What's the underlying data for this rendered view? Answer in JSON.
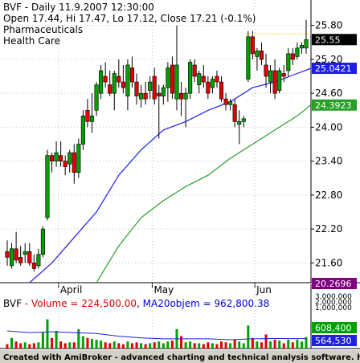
{
  "header": {
    "symbol": "BVF",
    "period": "Daily",
    "datetime": "11.9.2007 12:30:00",
    "ohlc": "Open 17.44, Hi 17.47, Lo 17.12, Close 17.21 (-0.1%)",
    "sector": "Pharmaceuticals",
    "industry": "Health Care"
  },
  "colors": {
    "up": "#00a000",
    "down": "#e00000",
    "ma_short": "#1e1ee6",
    "ma_long": "#28a028",
    "vol_avg": "#2020e0",
    "dotted": "#ffd200"
  },
  "chart_data": [
    {
      "type": "candlestick",
      "title": "BVF - Daily 11.9.2007 12:30:00",
      "x_ticks": [
        "April",
        "May",
        "Jun"
      ],
      "y_ticks": [
        21.6,
        22.2,
        22.8,
        23.4,
        24.0,
        24.6,
        25.2,
        25.8
      ],
      "ylim": [
        21.25,
        26.25
      ],
      "grid": true,
      "candles": [
        {
          "o": 21.8,
          "h": 22.0,
          "l": 21.55,
          "c": 21.7
        },
        {
          "o": 21.55,
          "h": 21.95,
          "l": 21.5,
          "c": 21.85
        },
        {
          "o": 21.85,
          "h": 22.15,
          "l": 21.6,
          "c": 21.65
        },
        {
          "o": 21.7,
          "h": 21.9,
          "l": 21.55,
          "c": 21.6
        },
        {
          "o": 21.75,
          "h": 21.95,
          "l": 21.6,
          "c": 21.8
        },
        {
          "o": 21.8,
          "h": 21.95,
          "l": 21.55,
          "c": 21.6
        },
        {
          "o": 21.6,
          "h": 21.75,
          "l": 21.45,
          "c": 21.5
        },
        {
          "o": 21.55,
          "h": 21.85,
          "l": 21.5,
          "c": 21.75
        },
        {
          "o": 21.75,
          "h": 22.25,
          "l": 21.7,
          "c": 22.2
        },
        {
          "o": 22.4,
          "h": 23.6,
          "l": 22.35,
          "c": 23.5
        },
        {
          "o": 23.5,
          "h": 23.55,
          "l": 23.2,
          "c": 23.4
        },
        {
          "o": 23.4,
          "h": 23.75,
          "l": 23.3,
          "c": 23.55
        },
        {
          "o": 23.5,
          "h": 23.75,
          "l": 23.3,
          "c": 23.4
        },
        {
          "o": 23.4,
          "h": 23.5,
          "l": 23.15,
          "c": 23.3
        },
        {
          "o": 23.35,
          "h": 23.6,
          "l": 23.2,
          "c": 23.55
        },
        {
          "o": 23.55,
          "h": 23.7,
          "l": 23.0,
          "c": 23.2
        },
        {
          "o": 23.2,
          "h": 23.8,
          "l": 23.1,
          "c": 23.7
        },
        {
          "o": 23.7,
          "h": 24.3,
          "l": 23.6,
          "c": 24.2
        },
        {
          "o": 24.3,
          "h": 24.5,
          "l": 24.0,
          "c": 24.1
        },
        {
          "o": 24.1,
          "h": 24.6,
          "l": 23.9,
          "c": 24.2
        },
        {
          "o": 24.3,
          "h": 24.8,
          "l": 24.2,
          "c": 24.75
        },
        {
          "o": 24.6,
          "h": 25.1,
          "l": 24.5,
          "c": 25.0
        },
        {
          "o": 24.9,
          "h": 25.15,
          "l": 24.7,
          "c": 24.8
        },
        {
          "o": 24.75,
          "h": 25.0,
          "l": 24.55,
          "c": 24.6
        },
        {
          "o": 24.6,
          "h": 25.0,
          "l": 24.3,
          "c": 24.95
        },
        {
          "o": 24.9,
          "h": 25.2,
          "l": 24.7,
          "c": 24.8
        },
        {
          "o": 24.8,
          "h": 25.1,
          "l": 24.6,
          "c": 24.7
        },
        {
          "o": 24.55,
          "h": 25.2,
          "l": 24.3,
          "c": 25.1
        },
        {
          "o": 25.05,
          "h": 25.25,
          "l": 24.7,
          "c": 24.8
        },
        {
          "o": 24.8,
          "h": 24.95,
          "l": 24.4,
          "c": 24.55
        },
        {
          "o": 24.5,
          "h": 24.75,
          "l": 24.35,
          "c": 24.6
        },
        {
          "o": 24.6,
          "h": 24.8,
          "l": 24.4,
          "c": 24.5
        },
        {
          "o": 24.65,
          "h": 24.9,
          "l": 24.5,
          "c": 24.8
        },
        {
          "o": 24.9,
          "h": 25.05,
          "l": 24.4,
          "c": 24.5
        },
        {
          "o": 24.6,
          "h": 24.75,
          "l": 23.8,
          "c": 24.55
        },
        {
          "o": 24.55,
          "h": 24.75,
          "l": 24.4,
          "c": 24.7
        },
        {
          "o": 24.7,
          "h": 25.15,
          "l": 24.45,
          "c": 25.05
        },
        {
          "o": 25.1,
          "h": 25.25,
          "l": 24.5,
          "c": 24.6
        },
        {
          "o": 24.5,
          "h": 25.8,
          "l": 24.3,
          "c": 25.1
        },
        {
          "o": 24.6,
          "h": 24.8,
          "l": 24.2,
          "c": 24.5
        },
        {
          "o": 24.5,
          "h": 24.7,
          "l": 24.0,
          "c": 24.6
        },
        {
          "o": 24.6,
          "h": 25.2,
          "l": 24.5,
          "c": 25.15
        },
        {
          "o": 25.1,
          "h": 25.2,
          "l": 24.8,
          "c": 24.9
        },
        {
          "o": 24.75,
          "h": 25.0,
          "l": 24.6,
          "c": 24.95
        },
        {
          "o": 24.9,
          "h": 25.1,
          "l": 24.7,
          "c": 24.8
        },
        {
          "o": 24.8,
          "h": 24.9,
          "l": 24.5,
          "c": 24.6
        },
        {
          "o": 24.7,
          "h": 24.9,
          "l": 24.6,
          "c": 24.85
        },
        {
          "o": 24.9,
          "h": 25.0,
          "l": 24.7,
          "c": 24.8
        },
        {
          "o": 24.8,
          "h": 24.9,
          "l": 24.45,
          "c": 24.5
        },
        {
          "o": 24.5,
          "h": 24.6,
          "l": 24.3,
          "c": 24.4
        },
        {
          "o": 24.4,
          "h": 24.5,
          "l": 24.3,
          "c": 24.45
        },
        {
          "o": 24.4,
          "h": 24.5,
          "l": 24.0,
          "c": 24.1
        },
        {
          "o": 24.05,
          "h": 24.3,
          "l": 23.7,
          "c": 24.1
        },
        {
          "o": 24.1,
          "h": 24.2,
          "l": 24.0,
          "c": 24.15
        },
        {
          "o": 24.85,
          "h": 25.7,
          "l": 24.8,
          "c": 25.6
        },
        {
          "o": 25.6,
          "h": 25.7,
          "l": 25.2,
          "c": 25.3
        },
        {
          "o": 25.25,
          "h": 25.4,
          "l": 25.0,
          "c": 25.35
        },
        {
          "o": 25.35,
          "h": 25.5,
          "l": 25.1,
          "c": 25.2
        },
        {
          "o": 25.1,
          "h": 25.3,
          "l": 24.7,
          "c": 24.9
        },
        {
          "o": 24.8,
          "h": 25.1,
          "l": 24.6,
          "c": 25.0
        },
        {
          "o": 25.0,
          "h": 25.2,
          "l": 24.5,
          "c": 24.6
        },
        {
          "o": 24.65,
          "h": 25.05,
          "l": 24.6,
          "c": 25.0
        },
        {
          "o": 24.95,
          "h": 25.1,
          "l": 24.8,
          "c": 24.9
        },
        {
          "o": 25.0,
          "h": 25.4,
          "l": 24.9,
          "c": 25.3
        },
        {
          "o": 25.3,
          "h": 25.4,
          "l": 25.1,
          "c": 25.2
        },
        {
          "o": 25.25,
          "h": 25.5,
          "l": 25.2,
          "c": 25.4
        },
        {
          "o": 25.4,
          "h": 25.5,
          "l": 25.3,
          "c": 25.45
        },
        {
          "o": 25.4,
          "h": 25.9,
          "l": 25.3,
          "c": 25.55
        }
      ],
      "ma_short": {
        "label": "25.0421",
        "points": [
          [
            5,
            21.25
          ],
          [
            10,
            21.6
          ],
          [
            15,
            22.05
          ],
          [
            20,
            22.5
          ],
          [
            25,
            23.15
          ],
          [
            30,
            23.6
          ],
          [
            35,
            23.95
          ],
          [
            40,
            24.1
          ],
          [
            45,
            24.3
          ],
          [
            50,
            24.45
          ],
          [
            55,
            24.7
          ],
          [
            60,
            24.8
          ],
          [
            65,
            24.95
          ],
          [
            68,
            25.04
          ]
        ]
      },
      "ma_long": {
        "label": "24.3923",
        "points": [
          [
            20,
            21.25
          ],
          [
            25,
            21.9
          ],
          [
            30,
            22.4
          ],
          [
            35,
            22.7
          ],
          [
            40,
            22.95
          ],
          [
            45,
            23.15
          ],
          [
            50,
            23.45
          ],
          [
            55,
            23.7
          ],
          [
            60,
            23.95
          ],
          [
            65,
            24.2
          ],
          [
            68,
            24.39
          ]
        ]
      },
      "dotted_level": 25.65,
      "right_labels": {
        "last": "25.55",
        "ma_short": "25.0421",
        "ma_long": "24.3923",
        "bottom": "20.2696"
      }
    },
    {
      "type": "bar",
      "title": "BVF - Volume = 224,500.00,  MA20objem = 962,800.38",
      "volume_label": "Volume = 224,500.00",
      "ma_label": "MA20objem = 962,800.38",
      "y_ticks": [
        "3,000,000",
        "2,000,000",
        "1,000,000"
      ],
      "ylim": [
        0,
        3000000
      ],
      "right_labels": {
        "volume": "608,400",
        "ma": "564,530"
      },
      "bars": [
        {
          "v": 250000,
          "up": false
        },
        {
          "v": 600000,
          "up": true
        },
        {
          "v": 400000,
          "up": false
        },
        {
          "v": 300000,
          "up": false
        },
        {
          "v": 350000,
          "up": true
        },
        {
          "v": 250000,
          "up": false
        },
        {
          "v": 300000,
          "up": false
        },
        {
          "v": 350000,
          "up": true
        },
        {
          "v": 900000,
          "up": true
        },
        {
          "v": 1650000,
          "up": true
        },
        {
          "v": 600000,
          "up": false
        },
        {
          "v": 1000000,
          "up": true
        },
        {
          "v": 400000,
          "up": false
        },
        {
          "v": 300000,
          "up": false
        },
        {
          "v": 350000,
          "up": true
        },
        {
          "v": 350000,
          "up": false
        },
        {
          "v": 1100000,
          "up": true
        },
        {
          "v": 700000,
          "up": true
        },
        {
          "v": 600000,
          "up": false
        },
        {
          "v": 550000,
          "up": true
        },
        {
          "v": 500000,
          "up": true
        },
        {
          "v": 450000,
          "up": true
        },
        {
          "v": 350000,
          "up": false
        },
        {
          "v": 300000,
          "up": false
        },
        {
          "v": 400000,
          "up": true
        },
        {
          "v": 300000,
          "up": false
        },
        {
          "v": 250000,
          "up": false
        },
        {
          "v": 400000,
          "up": true
        },
        {
          "v": 300000,
          "up": false
        },
        {
          "v": 350000,
          "up": false
        },
        {
          "v": 300000,
          "up": true
        },
        {
          "v": 250000,
          "up": false
        },
        {
          "v": 300000,
          "up": true
        },
        {
          "v": 350000,
          "up": false
        },
        {
          "v": 400000,
          "up": true
        },
        {
          "v": 300000,
          "up": true
        },
        {
          "v": 400000,
          "up": true
        },
        {
          "v": 450000,
          "up": false
        },
        {
          "v": 1100000,
          "up": true
        },
        {
          "v": 700000,
          "up": false
        },
        {
          "v": 350000,
          "up": true
        },
        {
          "v": 400000,
          "up": true
        },
        {
          "v": 300000,
          "up": false
        },
        {
          "v": 300000,
          "up": true
        },
        {
          "v": 250000,
          "up": false
        },
        {
          "v": 350000,
          "up": false
        },
        {
          "v": 300000,
          "up": true
        },
        {
          "v": 250000,
          "up": false
        },
        {
          "v": 400000,
          "up": false
        },
        {
          "v": 350000,
          "up": false
        },
        {
          "v": 300000,
          "up": true
        },
        {
          "v": 500000,
          "up": false
        },
        {
          "v": 400000,
          "up": true
        },
        {
          "v": 300000,
          "up": true
        },
        {
          "v": 1300000,
          "up": true
        },
        {
          "v": 600000,
          "up": false
        },
        {
          "v": 400000,
          "up": true
        },
        {
          "v": 350000,
          "up": false
        },
        {
          "v": 800000,
          "up": false
        },
        {
          "v": 400000,
          "up": true
        },
        {
          "v": 500000,
          "up": false
        },
        {
          "v": 450000,
          "up": true
        },
        {
          "v": 300000,
          "up": false
        },
        {
          "v": 500000,
          "up": true
        },
        {
          "v": 350000,
          "up": false
        },
        {
          "v": 500000,
          "up": true
        },
        {
          "v": 400000,
          "up": true
        },
        {
          "v": 650000,
          "up": true
        }
      ],
      "ma_points": [
        [
          0,
          1000000
        ],
        [
          5,
          900000
        ],
        [
          10,
          950000
        ],
        [
          15,
          900000
        ],
        [
          20,
          850000
        ],
        [
          25,
          700000
        ],
        [
          30,
          600000
        ],
        [
          35,
          550000
        ],
        [
          40,
          550000
        ],
        [
          45,
          550000
        ],
        [
          50,
          500000
        ],
        [
          55,
          550000
        ],
        [
          60,
          570000
        ],
        [
          65,
          565000
        ],
        [
          67,
          564530
        ]
      ]
    }
  ],
  "footer": {
    "left": "Created with AmiBroker - advanced charting and technical analysis software. http://www.amibroker.com"
  }
}
